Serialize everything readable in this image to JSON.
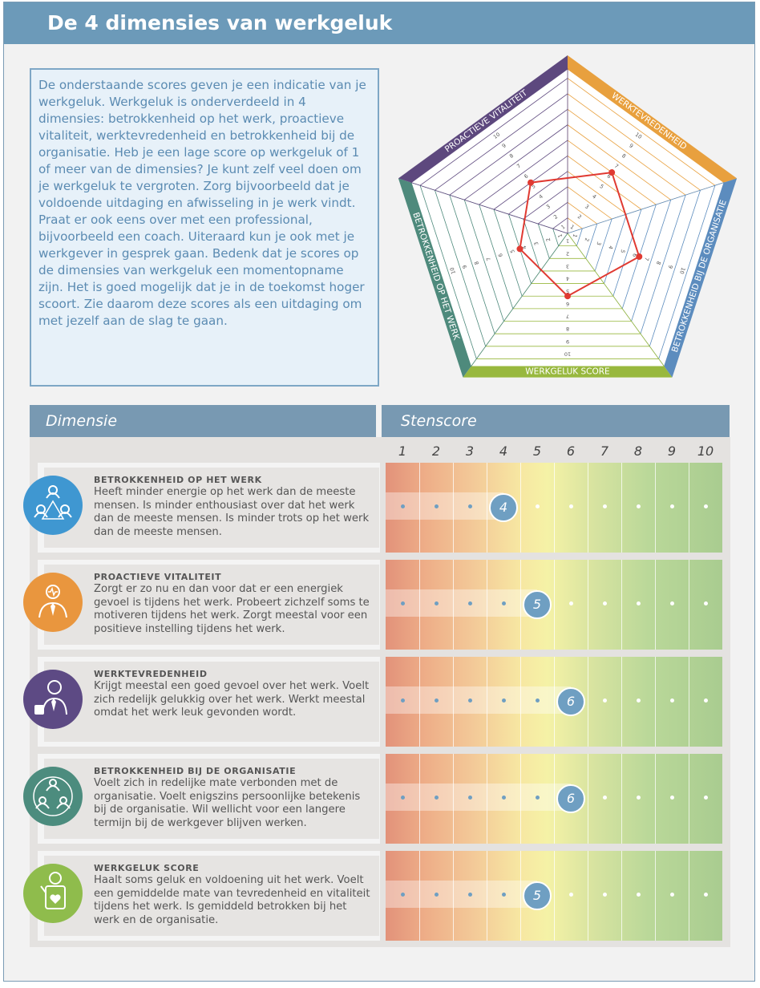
{
  "header": {
    "title": "De 4 dimensies van werkgeluk"
  },
  "intro": {
    "text": "De onderstaande scores geven je een indicatie van je werkgeluk. Werkgeluk is onderverdeeld in 4 dimensies: betrokkenheid op het werk, proactieve vitaliteit, werktevredenheid en betrokkenheid bij de organisatie. Heb je een lage score op werkgeluk of 1 of meer van de dimensies? Je kunt zelf veel doen om je werkgeluk te vergroten. Zorg bijvoorbeeld dat je voldoende uitdaging en afwisseling in je werk vindt. Praat er ook eens over met een professional, bijvoorbeeld een coach. Uiteraard kun je ook met je werkgever in gesprek gaan. Bedenk dat je scores op de dimensies van werkgeluk een momentopname zijn. Het is goed mogelijk dat je in de toekomst hoger scoort. Zie daarom deze scores als een uitdaging om met jezelf aan de slag te gaan."
  },
  "radar": {
    "axes": [
      {
        "label": "WERKTEVREDENHEID",
        "score": 6,
        "color": "#e8a03e"
      },
      {
        "label": "BETROKKENHEID BIJ DE ORGANISATIE",
        "score": 6,
        "color": "#5c8cbe"
      },
      {
        "label": "WERKGELUK SCORE",
        "score": 5,
        "color": "#98b83e"
      },
      {
        "label": "BETROKKENHEID OP HET WERK",
        "score": 4,
        "color": "#4e8a7c"
      },
      {
        "label": "PROACTIEVE VITALITEIT",
        "score": 5,
        "color": "#5d487e"
      }
    ],
    "ticks": [
      "1",
      "2",
      "3",
      "4",
      "5",
      "6",
      "7",
      "8",
      "9",
      "10"
    ],
    "max": 10,
    "line_color": "#e03a32"
  },
  "table": {
    "col_dimensie": "Dimensie",
    "col_stenscore": "Stenscore",
    "scale": [
      "1",
      "2",
      "3",
      "4",
      "5",
      "6",
      "7",
      "8",
      "9",
      "10"
    ]
  },
  "rows": [
    {
      "title": "BETROKKENHEID OP HET WERK",
      "desc": "Heeft minder energie op het werk dan de meeste mensen. Is minder enthousiast over dat het werk dan de meeste mensen. Is minder trots op het werk dan de meeste mensen.",
      "score": 4,
      "score_label": "4",
      "icon": "team-network-icon",
      "icon_color": "#3f97d1"
    },
    {
      "title": "PROACTIEVE VITALITEIT",
      "desc": "Zorgt er zo nu en dan voor dat er een energiek gevoel is tijdens het werk. Probeert zichzelf soms te motiveren tijdens het werk. Zorgt meestal voor een positieve instelling tijdens het werk.",
      "score": 5,
      "score_label": "5",
      "icon": "vitality-person-icon",
      "icon_color": "#e9963e"
    },
    {
      "title": "WERKTEVREDENHEID",
      "desc": "Krijgt meestal een goed gevoel over het werk. Voelt zich redelijk gelukkig over het werk. Werkt meestal omdat het werk leuk gevonden wordt.",
      "score": 6,
      "score_label": "6",
      "icon": "thumbs-up-person-icon",
      "icon_color": "#5d4a84"
    },
    {
      "title": "BETROKKENHEID BIJ DE ORGANISATIE",
      "desc": "Voelt zich in redelijke mate verbonden met de organisatie. Voelt enigszins persoonlijke betekenis bij de organisatie. Wil wellicht voor een langere termijn bij de werkgever blijven werken.",
      "score": 6,
      "score_label": "6",
      "icon": "organisation-cycle-icon",
      "icon_color": "#4c8c7e"
    },
    {
      "title": "WERKGELUK SCORE",
      "desc": "Haalt soms geluk en voldoening uit het werk. Voelt een gemiddelde mate van tevredenheid en vitaliteit tijdens het werk. Is gemiddeld betrokken bij het werk en de organisatie.",
      "score": 5,
      "score_label": "5",
      "icon": "heart-person-icon",
      "icon_color": "#8fbc4c"
    }
  ]
}
